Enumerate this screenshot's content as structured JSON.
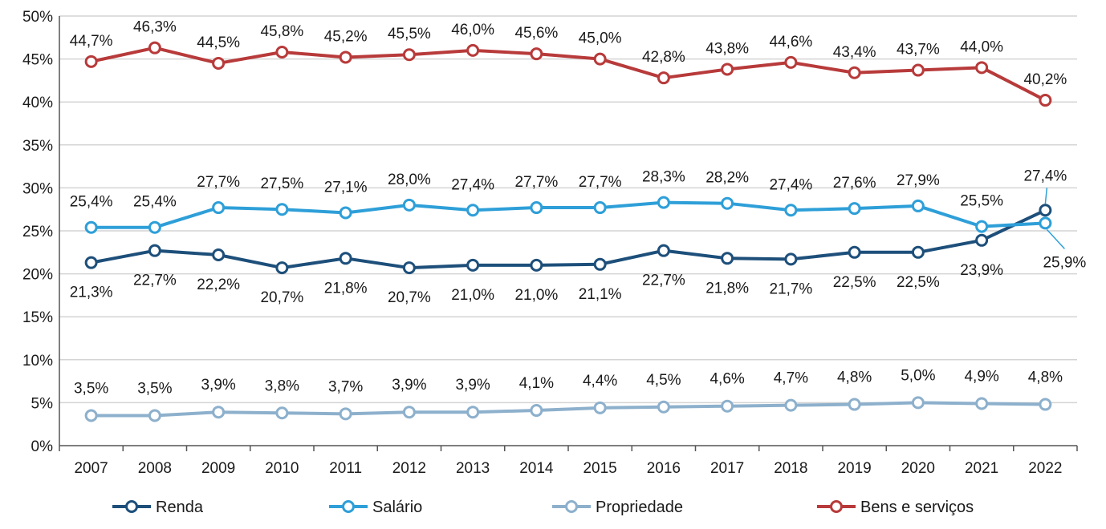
{
  "chart_data": {
    "type": "line",
    "title": "",
    "xlabel": "",
    "ylabel": "",
    "ylim": [
      0,
      50
    ],
    "y_ticks": [
      "0%",
      "5%",
      "10%",
      "15%",
      "20%",
      "25%",
      "30%",
      "35%",
      "40%",
      "45%",
      "50%"
    ],
    "y_tick_values": [
      0,
      5,
      10,
      15,
      20,
      25,
      30,
      35,
      40,
      45,
      50
    ],
    "categories": [
      "2007",
      "2008",
      "2009",
      "2010",
      "2011",
      "2012",
      "2013",
      "2014",
      "2015",
      "2016",
      "2017",
      "2018",
      "2019",
      "2020",
      "2021",
      "2022"
    ],
    "grid": true,
    "legend_position": "bottom",
    "series": [
      {
        "key": "renda",
        "name": "Renda",
        "color": "#1d4f7a",
        "values": [
          21.3,
          22.7,
          22.2,
          20.7,
          21.8,
          20.7,
          21.0,
          21.0,
          21.1,
          22.7,
          21.8,
          21.7,
          22.5,
          22.5,
          23.9,
          27.4
        ],
        "labels": [
          "21,3%",
          "22,7%",
          "22,2%",
          "20,7%",
          "21,8%",
          "20,7%",
          "21,0%",
          "21,0%",
          "21,1%",
          "22,7%",
          "21,8%",
          "21,7%",
          "22,5%",
          "22,5%",
          "23,9%",
          "27,4%"
        ]
      },
      {
        "key": "salario",
        "name": "Salário",
        "color": "#2e9fd8",
        "values": [
          25.4,
          25.4,
          27.7,
          27.5,
          27.1,
          28.0,
          27.4,
          27.7,
          27.7,
          28.3,
          28.2,
          27.4,
          27.6,
          27.9,
          25.5,
          25.9
        ],
        "labels": [
          "25,4%",
          "25,4%",
          "27,7%",
          "27,5%",
          "27,1%",
          "28,0%",
          "27,4%",
          "27,7%",
          "27,7%",
          "28,3%",
          "28,2%",
          "27,4%",
          "27,6%",
          "27,9%",
          "25,5%",
          "25,9%"
        ]
      },
      {
        "key": "propriedade",
        "name": "Propriedade",
        "color": "#8db0cc",
        "values": [
          3.5,
          3.5,
          3.9,
          3.8,
          3.7,
          3.9,
          3.9,
          4.1,
          4.4,
          4.5,
          4.6,
          4.7,
          4.8,
          5.0,
          4.9,
          4.8
        ],
        "labels": [
          "3,5%",
          "3,5%",
          "3,9%",
          "3,8%",
          "3,7%",
          "3,9%",
          "3,9%",
          "4,1%",
          "4,4%",
          "4,5%",
          "4,6%",
          "4,7%",
          "4,8%",
          "5,0%",
          "4,9%",
          "4,8%"
        ]
      },
      {
        "key": "bens",
        "name": "Bens e serviços",
        "color": "#b83a3a",
        "values": [
          44.7,
          46.3,
          44.5,
          45.8,
          45.2,
          45.5,
          46.0,
          45.6,
          45.0,
          42.8,
          43.8,
          44.6,
          43.4,
          43.7,
          44.0,
          40.2
        ],
        "labels": [
          "44,7%",
          "46,3%",
          "44,5%",
          "45,8%",
          "45,2%",
          "45,5%",
          "46,0%",
          "45,6%",
          "45,0%",
          "42,8%",
          "43,8%",
          "44,6%",
          "43,4%",
          "43,7%",
          "44,0%",
          "40,2%"
        ]
      }
    ]
  }
}
